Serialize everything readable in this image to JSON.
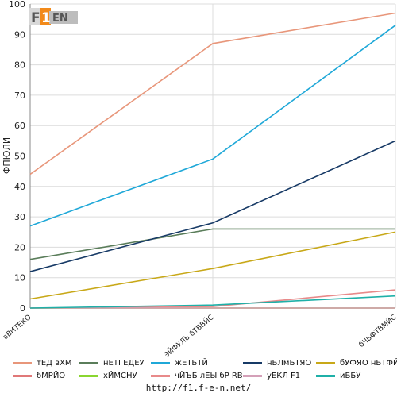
{
  "chart_data": {
    "type": "line",
    "ylabel": "ФПЮЛИ",
    "ylim": [
      0,
      100
    ],
    "yticks": [
      0,
      10,
      20,
      30,
      40,
      50,
      60,
      70,
      80,
      90,
      100
    ],
    "categories": [
      "вВИТЕКО",
      "ЭЙФУЛЬ бТВВЙС",
      "бЧЬФТВМЙС"
    ],
    "grid": true,
    "legend_position": "bottom",
    "series": [
      {
        "name": "тЕД вХМ",
        "color": "#e8967a",
        "values": [
          44,
          87,
          97
        ]
      },
      {
        "name": "нЕТГЕДЕУ",
        "color": "#5a7d5a",
        "values": [
          16,
          26,
          26
        ]
      },
      {
        "name": "жЕТБТЙ",
        "color": "#1fa8d8",
        "values": [
          27,
          49,
          93
        ]
      },
      {
        "name": "нБЛмБТЯО",
        "color": "#173a66",
        "values": [
          12,
          28,
          55
        ]
      },
      {
        "name": "бУФЯО нБТФЙО",
        "color": "#c8a818",
        "values": [
          3,
          13,
          25
        ]
      },
      {
        "name": "бМРЙО",
        "color": "#e07878",
        "values": [
          0,
          0,
          0
        ]
      },
      {
        "name": "хЙМСНУ",
        "color": "#8ad630",
        "values": [
          0,
          0,
          0
        ]
      },
      {
        "name": "чЙЪБ лЕЫ бР RB",
        "color": "#e88a8a",
        "values": [
          0,
          0.5,
          6
        ]
      },
      {
        "name": "уЕКЛ F1",
        "color": "#d4a0b8",
        "values": [
          0,
          0,
          0
        ]
      },
      {
        "name": "иББУ",
        "color": "#1fb0a8",
        "values": [
          0,
          1,
          4
        ]
      }
    ]
  },
  "logo_text": "F1EN",
  "footer": "http://f1.f-e-n.net/"
}
